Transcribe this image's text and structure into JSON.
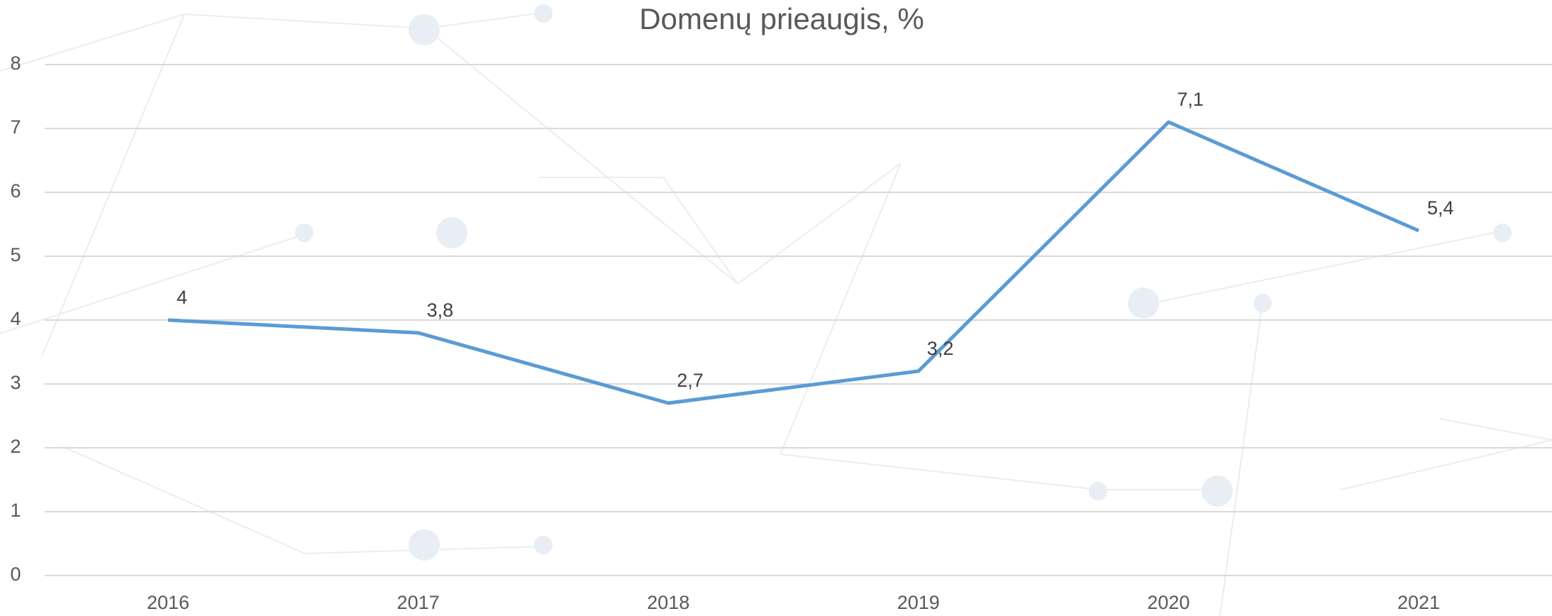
{
  "chart_data": {
    "type": "line",
    "title": "Domenų prieaugis, %",
    "categories": [
      "2016",
      "2017",
      "2018",
      "2019",
      "2020",
      "2021"
    ],
    "series": [
      {
        "name": "Domenų prieaugis",
        "color": "#5b9bd5",
        "values": [
          4,
          3.8,
          2.7,
          3.2,
          7.1,
          5.4
        ],
        "value_labels": [
          "4",
          "3,8",
          "2,7",
          "3,2",
          "7,1",
          "5,4"
        ]
      }
    ],
    "ylim": [
      0,
      8
    ],
    "yticks": [
      0,
      1,
      2,
      3,
      4,
      5,
      6,
      7,
      8
    ],
    "grid": true
  }
}
